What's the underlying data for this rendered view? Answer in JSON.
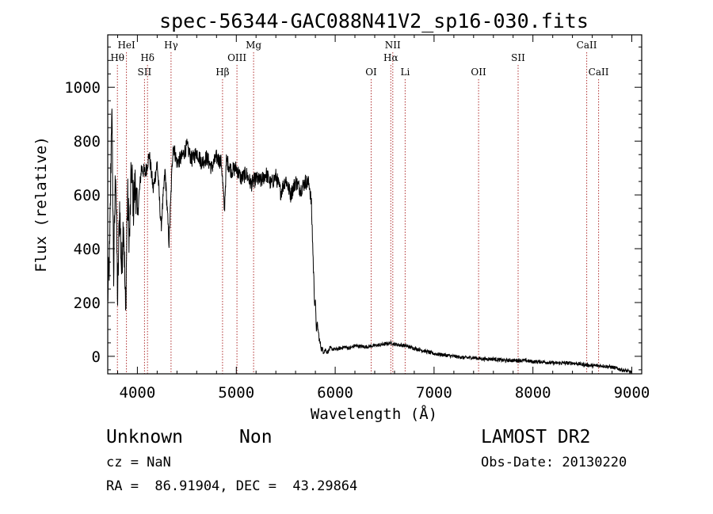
{
  "chart_data": {
    "type": "line",
    "title": "spec-56344-GAC088N41V2_sp16-030.fits",
    "xlabel": "Wavelength (Å)",
    "ylabel": "Flux (relative)",
    "xlim": [
      3700,
      9100
    ],
    "ylim": [
      -65,
      1195
    ],
    "x_ticks": [
      4000,
      5000,
      6000,
      7000,
      8000,
      9000
    ],
    "y_ticks": [
      0,
      200,
      400,
      600,
      800,
      1000
    ],
    "grid": false,
    "series": [
      {
        "name": "flux",
        "x": [
          3700,
          3720,
          3740,
          3760,
          3780,
          3800,
          3820,
          3840,
          3860,
          3880,
          3900,
          3920,
          3940,
          3960,
          3980,
          4000,
          4040,
          4080,
          4120,
          4160,
          4200,
          4240,
          4280,
          4320,
          4360,
          4400,
          4450,
          4500,
          4550,
          4600,
          4650,
          4700,
          4750,
          4800,
          4850,
          4880,
          4900,
          4950,
          5000,
          5050,
          5100,
          5150,
          5200,
          5250,
          5300,
          5350,
          5400,
          5450,
          5500,
          5550,
          5600,
          5650,
          5700,
          5740,
          5760,
          5780,
          5790,
          5800,
          5810,
          5820,
          5840,
          5860,
          5880,
          5900,
          5920,
          5950,
          6000,
          6050,
          6100,
          6150,
          6200,
          6300,
          6400,
          6500,
          6560,
          6600,
          6700,
          6800,
          6900,
          7000,
          7100,
          7200,
          7300,
          7400,
          7500,
          7600,
          7700,
          7800,
          7900,
          8000,
          8100,
          8200,
          8300,
          8400,
          8500,
          8600,
          8700,
          8800,
          8900,
          8960,
          9000
        ],
        "values": [
          220,
          380,
          950,
          300,
          720,
          200,
          560,
          320,
          520,
          150,
          600,
          430,
          700,
          560,
          650,
          520,
          700,
          680,
          750,
          620,
          720,
          480,
          690,
          420,
          790,
          720,
          740,
          780,
          730,
          760,
          720,
          740,
          700,
          740,
          720,
          540,
          730,
          690,
          700,
          660,
          680,
          640,
          660,
          650,
          680,
          640,
          670,
          610,
          660,
          600,
          650,
          620,
          650,
          640,
          560,
          330,
          220,
          200,
          100,
          120,
          60,
          30,
          20,
          25,
          15,
          30,
          25,
          30,
          35,
          30,
          40,
          35,
          40,
          45,
          50,
          45,
          40,
          30,
          20,
          10,
          5,
          0,
          -5,
          -5,
          -10,
          -10,
          -15,
          -15,
          -15,
          -20,
          -20,
          -25,
          -25,
          -25,
          -30,
          -35,
          -35,
          -40,
          -50,
          -55,
          -60
        ]
      }
    ],
    "lines": [
      {
        "label": "Hθ",
        "x": 3798,
        "row": 2
      },
      {
        "label": "HeI",
        "x": 3889,
        "row": 1
      },
      {
        "label": "SII",
        "x": 4072,
        "row": 3
      },
      {
        "label": "Hδ",
        "x": 4102,
        "row": 2
      },
      {
        "label": "Hγ",
        "x": 4340,
        "row": 1
      },
      {
        "label": "Hβ",
        "x": 4861,
        "row": 3
      },
      {
        "label": "OIII",
        "x": 5007,
        "row": 2
      },
      {
        "label": "Mg",
        "x": 5175,
        "row": 1
      },
      {
        "label": "OI",
        "x": 6364,
        "row": 3
      },
      {
        "label": "NII",
        "x": 6583,
        "row": 1
      },
      {
        "label": "Hα",
        "x": 6563,
        "row": 2
      },
      {
        "label": "Li",
        "x": 6708,
        "row": 3
      },
      {
        "label": "OII",
        "x": 7450,
        "row": 3
      },
      {
        "label": "SII",
        "x": 7850,
        "row": 2
      },
      {
        "label": "CaII",
        "x": 8544,
        "row": 1
      },
      {
        "label": "CaII",
        "x": 8664,
        "row": 3
      }
    ]
  },
  "info": {
    "class_label": "Unknown",
    "subclass_label": "Non",
    "survey_label": "LAMOST DR2",
    "cz_label": "cz = NaN",
    "obs_date_label": "Obs-Date: 20130220",
    "radec_label": "RA =  86.91904, DEC =  43.29864"
  },
  "colors": {
    "spectrum": "#000000",
    "line_markers": "#b03030",
    "axes": "#000000",
    "background": "#ffffff"
  }
}
